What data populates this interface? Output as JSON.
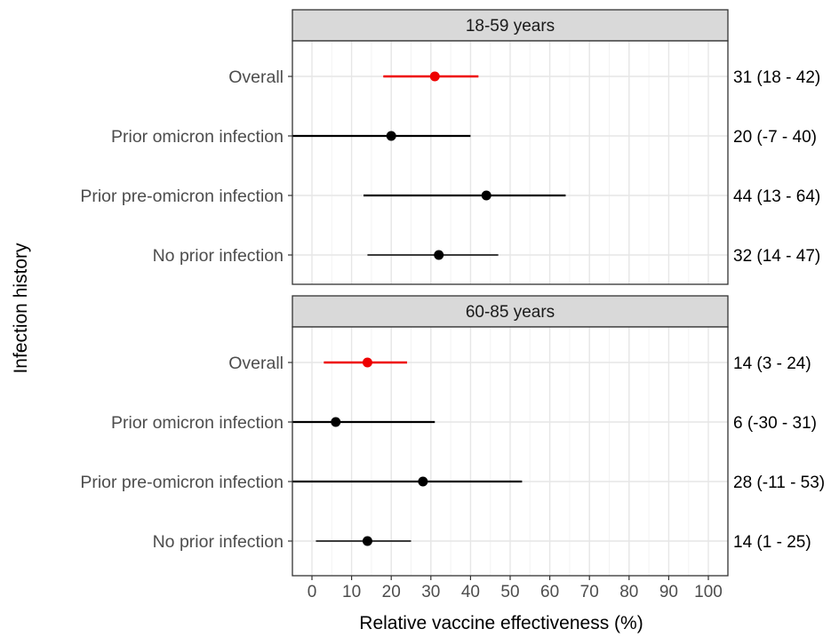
{
  "chart_data": {
    "type": "forest",
    "xlabel": "Relative vaccine effectiveness (%)",
    "ylabel": "Infection history",
    "xlim": [
      -5,
      105
    ],
    "xticks": [
      0,
      10,
      20,
      30,
      40,
      50,
      60,
      70,
      80,
      90,
      100
    ],
    "grid": true,
    "colors": {
      "overall": "#ee0000",
      "subgroup": "#000000",
      "strip": "#d9d9d9"
    },
    "panels": [
      {
        "title": "18-59 years",
        "rows": [
          {
            "label": "Overall",
            "estimate": 31,
            "lower": 18,
            "upper": 42,
            "annotation": "31 (18 - 42)",
            "highlight": true
          },
          {
            "label": "Prior omicron infection",
            "estimate": 20,
            "lower": -7,
            "upper": 40,
            "annotation": "20 (-7 - 40)",
            "highlight": false
          },
          {
            "label": "Prior pre-omicron infection",
            "estimate": 44,
            "lower": 13,
            "upper": 64,
            "annotation": "44 (13 - 64)",
            "highlight": false
          },
          {
            "label": "No prior infection",
            "estimate": 32,
            "lower": 14,
            "upper": 47,
            "annotation": "32 (14 - 47)",
            "highlight": false
          }
        ]
      },
      {
        "title": "60-85 years",
        "rows": [
          {
            "label": "Overall",
            "estimate": 14,
            "lower": 3,
            "upper": 24,
            "annotation": "14 (3 - 24)",
            "highlight": true
          },
          {
            "label": "Prior omicron infection",
            "estimate": 6,
            "lower": -30,
            "upper": 31,
            "annotation": "6 (-30 - 31)",
            "highlight": false
          },
          {
            "label": "Prior pre-omicron infection",
            "estimate": 28,
            "lower": -11,
            "upper": 53,
            "annotation": "28 (-11 - 53)",
            "highlight": false
          },
          {
            "label": "No prior infection",
            "estimate": 14,
            "lower": 1,
            "upper": 25,
            "annotation": "14 (1 - 25)",
            "highlight": false
          }
        ]
      }
    ]
  }
}
